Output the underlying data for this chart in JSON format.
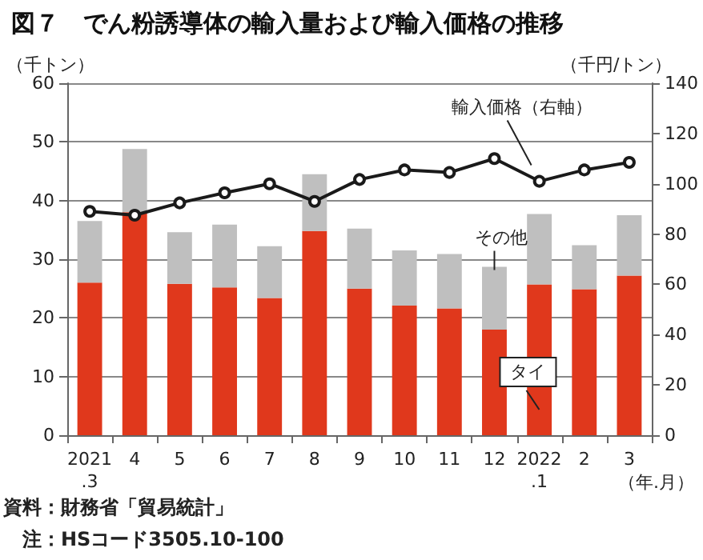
{
  "chart_data": {
    "type": "bar",
    "title": "図７　でん粉誘導体の輸入量および輸入価格の推移",
    "categories": [
      "2021\n.3",
      "4",
      "5",
      "6",
      "7",
      "8",
      "9",
      "10",
      "11",
      "12",
      "2022\n.1",
      "2",
      "3"
    ],
    "stacked": true,
    "series": [
      {
        "name": "タイ",
        "color": "#e0381c",
        "values": [
          26.0,
          38.0,
          25.8,
          25.2,
          23.4,
          34.8,
          25.0,
          22.1,
          21.6,
          18.0,
          25.7,
          24.9,
          27.2
        ]
      },
      {
        "name": "その他",
        "color": "#bfbfbf",
        "values": [
          10.5,
          10.8,
          8.8,
          10.7,
          8.8,
          9.7,
          10.2,
          9.4,
          9.3,
          10.7,
          12.0,
          7.5,
          10.3
        ]
      },
      {
        "name": "輸入価格（右軸）",
        "type": "line",
        "axis": "y2",
        "color": "#1a1a1a",
        "values": [
          89,
          87.5,
          92.4,
          96.4,
          100,
          93,
          101.7,
          105.5,
          104.5,
          110,
          101,
          105.5,
          108.5
        ]
      }
    ],
    "ylabel": "（千トン）",
    "y2label": "（千円/トン）",
    "xlabel": "（年.月）",
    "ylim": [
      0,
      60
    ],
    "yticks": [
      0,
      10,
      20,
      30,
      40,
      50,
      60
    ],
    "y2lim": [
      0,
      140
    ],
    "y2ticks": [
      0,
      20,
      40,
      60,
      80,
      100,
      120,
      140
    ],
    "grid": "y",
    "legend": false,
    "marker": "circle",
    "line_style": "solid",
    "annotations": [
      "資料：財務省「貿易統計」",
      "注：HSコード3505.10-100"
    ]
  }
}
